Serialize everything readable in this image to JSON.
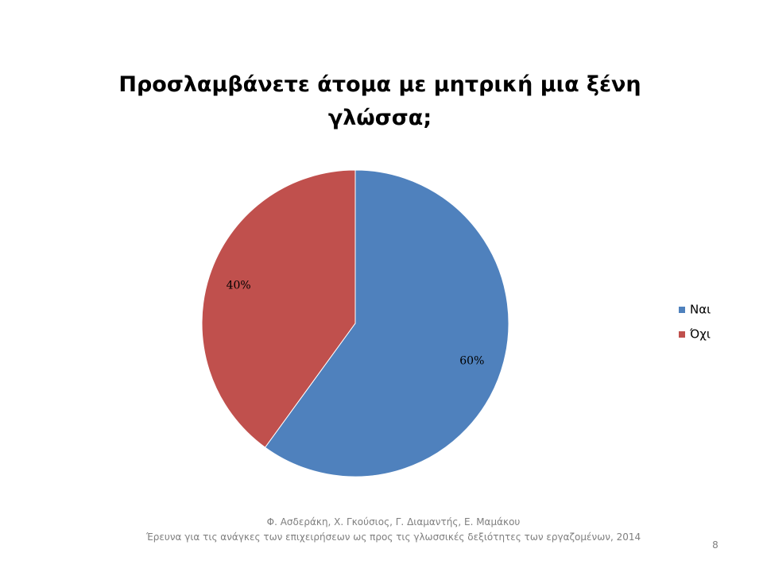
{
  "chart_data": {
    "type": "pie",
    "title": "Προσλαμβάνετε άτομα με μητρική μια ξένη γλώσσα;",
    "categories": [
      "Ναι",
      "Όχι"
    ],
    "values": [
      60,
      40
    ],
    "value_labels": [
      "60%",
      "40%"
    ],
    "colors": [
      "#4f81bd",
      "#c0504d"
    ],
    "legend": "right"
  },
  "footer": {
    "authors": "Φ. Ασδεράκη, Χ. Γκούσιος, Γ. Διαμαντής, Ε. Μαμάκου",
    "subtitle": "Έρευνα για τις ανάγκες των επιχειρήσεων ως προς τις γλωσσικές δεξιότητες των εργαζομένων, 2014"
  },
  "page_number": 8
}
